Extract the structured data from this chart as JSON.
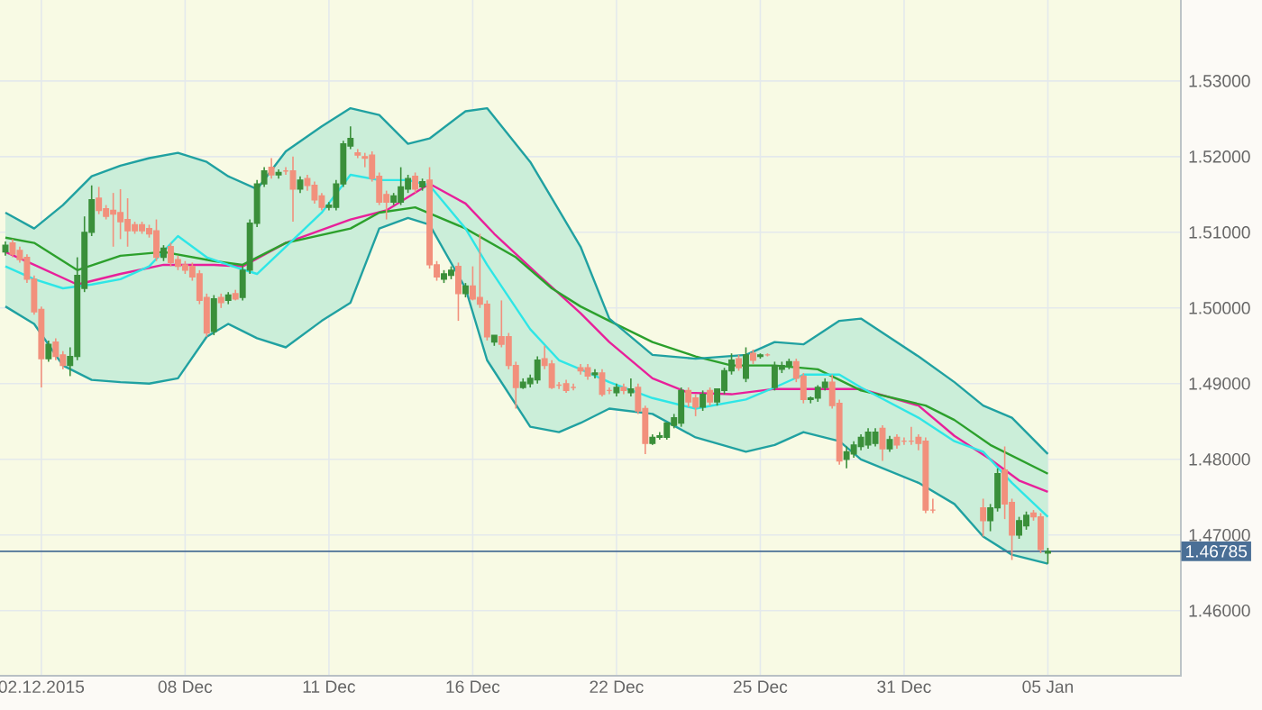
{
  "chart_data": {
    "type": "candlestick",
    "categories": [
      null,
      null,
      null,
      null,
      null,
      "02.12.2015",
      null,
      null,
      null,
      null,
      null,
      null,
      null,
      null,
      null,
      null,
      null,
      null,
      null,
      null,
      null,
      null,
      null,
      null,
      null,
      "08 Dec",
      null,
      null,
      null,
      null,
      null,
      null,
      null,
      null,
      null,
      null,
      null,
      null,
      null,
      null,
      null,
      null,
      null,
      null,
      null,
      "11 Dec",
      null,
      null,
      null,
      null,
      null,
      null,
      null,
      null,
      null,
      null,
      null,
      null,
      null,
      null,
      null,
      null,
      null,
      null,
      null,
      "16 Dec",
      null,
      null,
      null,
      null,
      null,
      null,
      null,
      null,
      null,
      null,
      null,
      null,
      null,
      null,
      null,
      null,
      null,
      null,
      null,
      "22 Dec",
      null,
      null,
      null,
      null,
      null,
      null,
      null,
      null,
      null,
      null,
      null,
      null,
      null,
      null,
      null,
      null,
      null,
      null,
      null,
      "25 Dec",
      null,
      null,
      null,
      null,
      null,
      null,
      null,
      null,
      null,
      null,
      null,
      null,
      null,
      null,
      null,
      null,
      null,
      null,
      null,
      "31 Dec",
      null,
      null,
      null,
      null,
      null,
      null,
      null,
      null,
      null,
      null,
      null,
      null,
      null,
      null,
      null,
      null,
      null,
      null,
      null,
      "05 Jan",
      null,
      null,
      null,
      null,
      null,
      null,
      null,
      null,
      null,
      null,
      null,
      null,
      null,
      null,
      null,
      null,
      null,
      null
    ],
    "ohlc": [
      [
        1.5074,
        1.5088,
        1.5069,
        1.5083
      ],
      [
        1.5086,
        1.5091,
        1.5067,
        1.5071
      ],
      [
        1.5076,
        1.5081,
        1.506,
        1.5064
      ],
      [
        1.5067,
        1.5071,
        1.5033,
        1.5038
      ],
      [
        1.5038,
        1.5043,
        1.4991,
        1.4995
      ],
      [
        1.4998,
        1.5002,
        1.4895,
        1.4933
      ],
      [
        1.4933,
        1.4957,
        1.4929,
        1.4952
      ],
      [
        1.4955,
        1.496,
        1.4931,
        1.4936
      ],
      [
        1.4938,
        1.4943,
        1.4919,
        1.4924
      ],
      [
        1.4924,
        1.4948,
        1.491,
        1.4936
      ],
      [
        1.4936,
        1.5067,
        1.4931,
        1.5043
      ],
      [
        1.5026,
        1.5121,
        1.5021,
        1.51
      ],
      [
        1.51,
        1.5162,
        1.5095,
        1.5143
      ],
      [
        1.5145,
        1.516,
        1.5124,
        1.5129
      ],
      [
        1.5131,
        1.5136,
        1.5117,
        1.5121
      ],
      [
        1.5129,
        1.5152,
        1.5081,
        1.5124
      ],
      [
        1.5126,
        1.5157,
        1.5091,
        1.5114
      ],
      [
        1.5117,
        1.5145,
        1.5081,
        1.5102
      ],
      [
        1.511,
        1.5114,
        1.5098,
        1.5102
      ],
      [
        1.511,
        1.5114,
        1.5098,
        1.5102
      ],
      [
        1.5105,
        1.511,
        1.5093,
        1.5098
      ],
      [
        1.5102,
        1.5117,
        1.5062,
        1.5067
      ],
      [
        1.5067,
        1.5083,
        1.5062,
        1.5079
      ],
      [
        1.5081,
        1.5086,
        1.5055,
        1.506
      ],
      [
        1.5064,
        1.5069,
        1.505,
        1.5055
      ],
      [
        1.5057,
        1.5062,
        1.5045,
        1.505
      ],
      [
        1.5055,
        1.506,
        1.5036,
        1.5041
      ],
      [
        1.5045,
        1.505,
        1.5005,
        1.501
      ],
      [
        1.5014,
        1.5019,
        1.4962,
        1.4967
      ],
      [
        1.4969,
        1.5017,
        1.4964,
        1.5012
      ],
      [
        1.5014,
        1.5019,
        1.5,
        1.5007
      ],
      [
        1.501,
        1.5021,
        1.5005,
        1.5017
      ],
      [
        1.5019,
        1.5024,
        1.501,
        1.5012
      ],
      [
        1.5014,
        1.5055,
        1.501,
        1.505
      ],
      [
        1.505,
        1.5117,
        1.5045,
        1.5112
      ],
      [
        1.5112,
        1.5169,
        1.5107,
        1.5164
      ],
      [
        1.5164,
        1.5186,
        1.516,
        1.5181
      ],
      [
        1.5186,
        1.5198,
        1.5171,
        1.5176
      ],
      [
        1.5176,
        1.5183,
        1.5171,
        1.5179
      ],
      [
        1.5181,
        1.5186,
        1.5176,
        1.5181
      ],
      [
        1.5181,
        1.52,
        1.5114,
        1.5157
      ],
      [
        1.5157,
        1.5174,
        1.5152,
        1.5169
      ],
      [
        1.5171,
        1.5176,
        1.5155,
        1.5162
      ],
      [
        1.5162,
        1.5167,
        1.5138,
        1.5143
      ],
      [
        1.5148,
        1.5152,
        1.5129,
        1.5133
      ],
      [
        1.5133,
        1.514,
        1.5129,
        1.5136
      ],
      [
        1.5133,
        1.5169,
        1.5129,
        1.5164
      ],
      [
        1.5164,
        1.5221,
        1.516,
        1.5217
      ],
      [
        1.5214,
        1.524,
        1.521,
        1.5224
      ],
      [
        1.5205,
        1.521,
        1.5198,
        1.5202
      ],
      [
        1.52,
        1.5205,
        1.5186,
        1.5198
      ],
      [
        1.5202,
        1.5207,
        1.5167,
        1.5171
      ],
      [
        1.5174,
        1.5179,
        1.5136,
        1.514
      ],
      [
        1.515,
        1.5155,
        1.5117,
        1.514
      ],
      [
        1.514,
        1.5152,
        1.5136,
        1.5148
      ],
      [
        1.514,
        1.5186,
        1.5136,
        1.516
      ],
      [
        1.5157,
        1.5176,
        1.5152,
        1.5171
      ],
      [
        1.5174,
        1.5179,
        1.5152,
        1.5157
      ],
      [
        1.516,
        1.5171,
        1.5155,
        1.5167
      ],
      [
        1.5169,
        1.5186,
        1.5052,
        1.5057
      ],
      [
        1.5057,
        1.5062,
        1.5036,
        1.5041
      ],
      [
        1.5038,
        1.505,
        1.5033,
        1.5045
      ],
      [
        1.5043,
        1.5055,
        1.5038,
        1.505
      ],
      [
        1.5055,
        1.506,
        1.4983,
        1.5019
      ],
      [
        1.5019,
        1.5033,
        1.5014,
        1.5029
      ],
      [
        1.5029,
        1.5055,
        1.501,
        1.5012
      ],
      [
        1.5014,
        1.5098,
        1.5,
        1.5005
      ],
      [
        1.5005,
        1.501,
        1.4957,
        1.4962
      ],
      [
        1.4955,
        1.4964,
        1.495,
        1.4964
      ],
      [
        1.4962,
        1.501,
        1.4948,
        1.4952
      ],
      [
        1.4962,
        1.4967,
        1.4919,
        1.4924
      ],
      [
        1.4924,
        1.4929,
        1.4867,
        1.4895
      ],
      [
        1.4895,
        1.4907,
        1.4893,
        1.4902
      ],
      [
        1.49,
        1.4912,
        1.4895,
        1.4907
      ],
      [
        1.4905,
        1.4936,
        1.49,
        1.4931
      ],
      [
        1.4933,
        1.495,
        1.4919,
        1.4924
      ],
      [
        1.4926,
        1.4931,
        1.4893,
        1.4895
      ],
      [
        1.4898,
        1.4902,
        1.4893,
        1.4898
      ],
      [
        1.49,
        1.4905,
        1.4888,
        1.4891
      ],
      [
        1.4895,
        1.49,
        1.4891,
        1.4895
      ],
      [
        1.4921,
        1.4926,
        1.4912,
        1.4917
      ],
      [
        1.4921,
        1.4926,
        1.4905,
        1.491
      ],
      [
        1.4912,
        1.4919,
        1.4907,
        1.4914
      ],
      [
        1.4914,
        1.4919,
        1.4883,
        1.4886
      ],
      [
        1.4891,
        1.4895,
        1.4886,
        1.4891
      ],
      [
        1.4888,
        1.49,
        1.4883,
        1.4895
      ],
      [
        1.4895,
        1.49,
        1.4886,
        1.4891
      ],
      [
        1.4888,
        1.4907,
        1.4883,
        1.4893
      ],
      [
        1.4895,
        1.49,
        1.486,
        1.4864
      ],
      [
        1.4867,
        1.4871,
        1.4807,
        1.4821
      ],
      [
        1.4821,
        1.4833,
        1.4819,
        1.4829
      ],
      [
        1.4829,
        1.4836,
        1.4826,
        1.4831
      ],
      [
        1.4829,
        1.4848,
        1.4826,
        1.4848
      ],
      [
        1.4845,
        1.486,
        1.4841,
        1.4855
      ],
      [
        1.4848,
        1.4895,
        1.4843,
        1.4891
      ],
      [
        1.4891,
        1.4895,
        1.4869,
        1.4876
      ],
      [
        1.4881,
        1.4886,
        1.4857,
        1.4869
      ],
      [
        1.4869,
        1.4891,
        1.4864,
        1.4886
      ],
      [
        1.4891,
        1.4895,
        1.4871,
        1.4876
      ],
      [
        1.4876,
        1.4893,
        1.4871,
        1.4893
      ],
      [
        1.4891,
        1.4921,
        1.4886,
        1.4917
      ],
      [
        1.4917,
        1.494,
        1.4912,
        1.4931
      ],
      [
        1.4933,
        1.4938,
        1.4917,
        1.4921
      ],
      [
        1.4907,
        1.4948,
        1.4902,
        1.4938
      ],
      [
        1.494,
        1.4945,
        1.4926,
        1.4931
      ],
      [
        1.4936,
        1.494,
        1.4933,
        1.4938
      ],
      [
        1.4938,
        1.494,
        1.4936,
        1.4938
      ],
      [
        1.4895,
        1.4929,
        1.4891,
        1.4924
      ],
      [
        1.4919,
        1.4929,
        1.4914,
        1.4924
      ],
      [
        1.4924,
        1.4933,
        1.4919,
        1.4929
      ],
      [
        1.4929,
        1.4933,
        1.4902,
        1.4907
      ],
      [
        1.491,
        1.4914,
        1.4874,
        1.4879
      ],
      [
        1.4879,
        1.4883,
        1.4874,
        1.4881
      ],
      [
        1.4881,
        1.4898,
        1.4876,
        1.4895
      ],
      [
        1.4895,
        1.4907,
        1.4891,
        1.4902
      ],
      [
        1.4902,
        1.4912,
        1.4867,
        1.4871
      ],
      [
        1.4874,
        1.4879,
        1.4793,
        1.4798
      ],
      [
        1.48,
        1.4817,
        1.4788,
        1.481
      ],
      [
        1.4807,
        1.4824,
        1.4802,
        1.4819
      ],
      [
        1.4817,
        1.4833,
        1.4812,
        1.4829
      ],
      [
        1.4819,
        1.4841,
        1.4814,
        1.4836
      ],
      [
        1.4821,
        1.4841,
        1.4817,
        1.4836
      ],
      [
        1.4841,
        1.4845,
        1.4798,
        1.4814
      ],
      [
        1.4814,
        1.4831,
        1.481,
        1.4826
      ],
      [
        1.4829,
        1.4833,
        1.4814,
        1.4819
      ],
      [
        1.4824,
        1.4829,
        1.4819,
        1.4824
      ],
      [
        1.4824,
        1.4843,
        1.4819,
        1.4824
      ],
      [
        1.4829,
        1.4833,
        1.4812,
        1.4821
      ],
      [
        1.4824,
        1.4829,
        1.4729,
        1.4733
      ],
      [
        1.4733,
        1.4748,
        1.4729,
        1.4733
      ],
      null,
      null,
      null,
      null,
      null,
      null,
      [
        1.4736,
        1.4748,
        1.4698,
        1.4719
      ],
      [
        1.4719,
        1.4741,
        1.4705,
        1.4736
      ],
      [
        1.4736,
        1.4788,
        1.4731,
        1.4781
      ],
      [
        1.4786,
        1.4817,
        1.4721,
        1.4741
      ],
      [
        1.4743,
        1.4748,
        1.4667,
        1.47
      ],
      [
        1.47,
        1.4724,
        1.4695,
        1.4719
      ],
      [
        1.4712,
        1.4731,
        1.4707,
        1.4726
      ],
      [
        1.4729,
        1.4733,
        1.4719,
        1.4724
      ],
      [
        1.4724,
        1.4729,
        1.4676,
        1.4681
      ],
      [
        1.4676,
        1.4683,
        1.4662,
        1.46785
      ],
      null,
      null,
      null,
      null,
      null,
      null,
      null,
      null,
      null,
      null,
      null,
      null,
      null,
      null,
      null,
      null,
      null,
      null
    ],
    "colors": [
      "#3a8f3a",
      "#f2907c",
      "#f2907c",
      "#f2907c",
      "#f2907c",
      "#f2907c",
      "#3a8f3a",
      "#f2907c",
      "#f2907c",
      "#3a8f3a",
      "#3a8f3a",
      "#3a8f3a",
      "#3a8f3a",
      "#f2907c",
      "#f2907c",
      "#f2907c",
      "#f2907c",
      "#f2907c",
      "#f2907c",
      "#f2907c",
      "#f2907c",
      "#f2907c",
      "#3a8f3a",
      "#f2907c",
      "#f2907c",
      "#f2907c",
      "#f2907c",
      "#f2907c",
      "#f2907c",
      "#3a8f3a",
      "#f2907c",
      "#3a8f3a",
      "#f2907c",
      "#3a8f3a",
      "#3a8f3a",
      "#3a8f3a",
      "#3a8f3a",
      "#f2907c",
      "#3a8f3a",
      "#f2907c",
      "#f2907c",
      "#3a8f3a",
      "#f2907c",
      "#f2907c",
      "#f2907c",
      "#3a8f3a",
      "#3a8f3a",
      "#3a8f3a",
      "#3a8f3a",
      "#f2907c",
      "#f2907c",
      "#f2907c",
      "#f2907c",
      "#f2907c",
      "#3a8f3a",
      "#3a8f3a",
      "#3a8f3a",
      "#f2907c",
      "#3a8f3a",
      "#f2907c",
      "#f2907c",
      "#3a8f3a",
      "#3a8f3a",
      "#f2907c",
      "#3a8f3a",
      "#f2907c",
      "#f2907c",
      "#f2907c",
      "#3a8f3a",
      "#f2907c",
      "#f2907c",
      "#f2907c",
      "#3a8f3a",
      "#3a8f3a",
      "#3a8f3a",
      "#f2907c",
      "#f2907c",
      "#f2907c",
      "#f2907c",
      "#f2907c",
      "#f2907c",
      "#f2907c",
      "#3a8f3a",
      "#f2907c",
      "#f2907c",
      "#3a8f3a",
      "#f2907c",
      "#3a8f3a",
      "#f2907c",
      "#f2907c",
      "#3a8f3a",
      "#3a8f3a",
      "#3a8f3a",
      "#3a8f3a",
      "#3a8f3a",
      "#f2907c",
      "#f2907c",
      "#3a8f3a",
      "#f2907c",
      "#3a8f3a",
      "#3a8f3a",
      "#3a8f3a",
      "#f2907c",
      "#3a8f3a",
      "#f2907c",
      "#3a8f3a",
      "#f2907c",
      "#3a8f3a",
      "#3a8f3a",
      "#3a8f3a",
      "#f2907c",
      "#f2907c",
      "#3a8f3a",
      "#3a8f3a",
      "#3a8f3a",
      "#f2907c",
      "#f2907c",
      "#3a8f3a",
      "#3a8f3a",
      "#3a8f3a",
      "#3a8f3a",
      "#3a8f3a",
      "#f2907c",
      "#3a8f3a",
      "#f2907c",
      "#f2907c",
      "#f2907c",
      "#f2907c",
      "#f2907c",
      "#f2907c",
      null,
      null,
      null,
      null,
      null,
      null,
      "#f2907c",
      "#3a8f3a",
      "#3a8f3a",
      "#f2907c",
      "#f2907c",
      "#3a8f3a",
      "#3a8f3a",
      "#f2907c",
      "#f2907c",
      "#3a8f3a",
      null,
      null,
      null,
      null,
      null,
      null,
      null,
      null,
      null,
      null,
      null,
      null,
      null,
      null,
      null,
      null,
      null,
      null
    ],
    "ylim": [
      1.4514,
      1.5407
    ],
    "yticks": [
      {
        "value": 1.46,
        "label": "1.46000"
      },
      {
        "value": 1.47,
        "label": "1.47000"
      },
      {
        "value": 1.48,
        "label": "1.48000"
      },
      {
        "value": 1.49,
        "label": "1.49000"
      },
      {
        "value": 1.5,
        "label": "1.50000"
      },
      {
        "value": 1.51,
        "label": "1.51000"
      },
      {
        "value": 1.52,
        "label": "1.52000"
      },
      {
        "value": 1.53,
        "label": "1.53000"
      }
    ],
    "grid": true,
    "series": [
      {
        "type": "line",
        "color": "#2ee6e6",
        "values": [
          1.5055,
          null,
          null,
          null,
          1.5038,
          null,
          null,
          null,
          1.5026,
          null,
          null,
          null,
          1.5031,
          null,
          null,
          null,
          1.5038,
          null,
          null,
          null,
          1.5055,
          null,
          null,
          null,
          1.5095,
          null,
          null,
          null,
          1.5067,
          null,
          null,
          1.5057,
          null,
          null,
          null,
          1.5045,
          null,
          null,
          null,
          1.5081,
          null,
          null,
          null,
          null,
          1.5126,
          null,
          null,
          null,
          1.5176,
          null,
          null,
          null,
          1.5169,
          null,
          null,
          null,
          1.5169,
          null,
          null,
          1.5162,
          null,
          null,
          null,
          null,
          1.5105,
          null,
          null,
          1.5057,
          null,
          null,
          null,
          null,
          null,
          1.4972,
          null,
          null,
          null,
          1.4931,
          null,
          null,
          1.4919,
          null,
          null,
          null,
          1.4902,
          null,
          null,
          null,
          null,
          null,
          1.4881,
          null,
          null,
          null,
          null,
          null,
          1.4867,
          null,
          null,
          null,
          null,
          null,
          null,
          1.4879,
          null,
          null,
          null,
          1.4895,
          null,
          null,
          null,
          1.4912,
          null,
          null,
          null,
          null,
          1.4912,
          null,
          null,
          1.4895,
          null,
          null,
          null,
          null,
          null,
          null,
          null,
          1.4855,
          null,
          null,
          null,
          null,
          1.4824,
          null,
          null,
          null,
          1.481,
          null,
          null,
          null,
          1.4769,
          null,
          null,
          null,
          null,
          1.4724,
          null,
          null,
          null,
          null,
          null,
          null,
          null,
          null,
          null,
          null,
          null,
          null,
          null,
          null,
          null,
          null,
          null,
          null
        ],
        "lower": [
          1.5002,
          null,
          null,
          null,
          1.4979,
          null,
          null,
          null,
          1.4924,
          null,
          null,
          null,
          1.4905,
          null,
          null,
          null,
          1.4902,
          null,
          null,
          null,
          1.49,
          null,
          null,
          null,
          1.4907,
          null,
          null,
          null,
          1.4962,
          null,
          null,
          1.4979,
          null,
          null,
          null,
          1.496,
          null,
          null,
          null,
          1.4948,
          null,
          null,
          null,
          null,
          1.4983,
          null,
          null,
          null,
          1.5007,
          null,
          null,
          null,
          1.5105,
          null,
          null,
          null,
          1.5119,
          null,
          null,
          1.511,
          null,
          null,
          null,
          null,
          1.5026,
          null,
          null,
          1.4931,
          null,
          null,
          null,
          null,
          null,
          1.4843,
          null,
          null,
          null,
          1.4836,
          null,
          null,
          1.4848,
          null,
          null,
          null,
          1.4867,
          null,
          null,
          null,
          null,
          null,
          1.486,
          null,
          null,
          null,
          null,
          null,
          1.4829,
          null,
          null,
          null,
          null,
          null,
          null,
          1.481,
          null,
          null,
          null,
          1.4819,
          null,
          null,
          null,
          1.4836,
          null,
          null,
          null,
          null,
          1.4824,
          null,
          null,
          1.48,
          null,
          null,
          null,
          null,
          null,
          null,
          null,
          1.4769,
          null,
          null,
          null,
          null,
          1.4741,
          null,
          null,
          null,
          1.4698,
          null,
          null,
          null,
          1.4674,
          null,
          null,
          null,
          null,
          1.4662,
          null,
          null,
          null,
          null,
          null,
          null,
          null,
          null,
          null,
          null,
          null,
          null,
          null,
          null,
          null,
          null,
          null,
          null
        ],
        "upper": [
          1.5126,
          null,
          null,
          null,
          1.5105,
          null,
          null,
          null,
          1.5136,
          null,
          null,
          null,
          1.5174,
          null,
          null,
          null,
          1.5188,
          null,
          null,
          null,
          1.5198,
          null,
          null,
          null,
          1.5205,
          null,
          null,
          null,
          1.5193,
          null,
          null,
          1.5174,
          null,
          null,
          null,
          1.5157,
          null,
          null,
          null,
          1.5207,
          null,
          null,
          null,
          null,
          1.524,
          null,
          null,
          null,
          1.5264,
          null,
          null,
          null,
          1.5255,
          null,
          null,
          null,
          1.5217,
          null,
          null,
          1.5224,
          null,
          null,
          null,
          null,
          1.526,
          null,
          null,
          1.5264,
          null,
          null,
          null,
          null,
          null,
          1.5193,
          null,
          null,
          null,
          1.5129,
          null,
          null,
          1.5081,
          null,
          null,
          null,
          1.4986,
          null,
          null,
          null,
          null,
          null,
          1.4938,
          null,
          null,
          null,
          null,
          null,
          1.4933,
          null,
          null,
          null,
          null,
          null,
          null,
          1.4938,
          null,
          null,
          null,
          1.4955,
          null,
          null,
          null,
          1.4952,
          null,
          null,
          null,
          null,
          1.4983,
          null,
          null,
          1.4986,
          null,
          null,
          null,
          null,
          null,
          null,
          null,
          1.4936,
          null,
          null,
          null,
          null,
          1.4902,
          null,
          null,
          null,
          1.4871,
          null,
          null,
          null,
          1.4855,
          null,
          null,
          null,
          null,
          1.4807,
          null,
          null,
          null,
          null,
          null,
          null,
          null,
          null,
          null,
          null,
          null,
          null,
          null,
          null,
          null,
          null,
          null,
          null
        ]
      },
      {
        "type": "line",
        "color": "#e8209a",
        "values": [
          1.5074,
          null,
          null,
          null,
          1.5057,
          null,
          null,
          null,
          null,
          null,
          1.5031,
          null,
          null,
          null,
          null,
          null,
          1.5045,
          null,
          null,
          null,
          null,
          null,
          1.5057,
          null,
          null,
          null,
          null,
          null,
          null,
          1.5057,
          null,
          null,
          null,
          1.5055,
          null,
          null,
          null,
          null,
          null,
          1.5086,
          null,
          null,
          null,
          null,
          null,
          null,
          null,
          null,
          1.5117,
          null,
          null,
          null,
          null,
          1.5129,
          null,
          null,
          null,
          null,
          null,
          1.5164,
          null,
          null,
          null,
          null,
          1.5138,
          null,
          null,
          null,
          1.5098,
          null,
          null,
          null,
          null,
          null,
          1.5045,
          null,
          null,
          null,
          null,
          null,
          1.4993,
          null,
          null,
          null,
          1.4955,
          null,
          null,
          null,
          null,
          null,
          1.4907,
          null,
          null,
          null,
          null,
          1.4888,
          null,
          null,
          null,
          null,
          null,
          1.4886,
          null,
          null,
          null,
          null,
          null,
          1.4893,
          null,
          null,
          null,
          null,
          null,
          1.4893,
          null,
          null,
          null,
          null,
          null,
          1.4893,
          null,
          null,
          null,
          null,
          null,
          null,
          null,
          1.4871,
          null,
          null,
          null,
          null,
          1.4831,
          null,
          null,
          null,
          null,
          1.48,
          null,
          null,
          null,
          1.4772,
          null,
          null,
          null,
          1.4757,
          null,
          null,
          null,
          null,
          null,
          null,
          null,
          null,
          null,
          null,
          null,
          null,
          null,
          null,
          null,
          null,
          null,
          null
        ]
      },
      {
        "type": "line",
        "color": "#2ca02c",
        "values": [
          1.5093,
          null,
          null,
          null,
          1.5086,
          null,
          null,
          null,
          null,
          null,
          1.505,
          null,
          null,
          null,
          null,
          null,
          1.5069,
          null,
          null,
          null,
          null,
          null,
          1.5074,
          null,
          null,
          null,
          null,
          null,
          null,
          1.5062,
          null,
          null,
          null,
          1.5057,
          null,
          null,
          null,
          null,
          null,
          1.5086,
          null,
          null,
          null,
          null,
          null,
          null,
          null,
          null,
          1.5105,
          null,
          null,
          null,
          1.5126,
          null,
          null,
          null,
          null,
          1.5133,
          null,
          null,
          null,
          null,
          null,
          null,
          1.5105,
          null,
          null,
          null,
          null,
          null,
          null,
          1.5067,
          null,
          null,
          null,
          null,
          1.5026,
          null,
          null,
          null,
          1.5002,
          null,
          null,
          null,
          1.4983,
          null,
          null,
          null,
          null,
          null,
          1.4955,
          null,
          null,
          null,
          null,
          null,
          1.4936,
          null,
          null,
          null,
          null,
          1.4924,
          null,
          null,
          null,
          null,
          null,
          1.4924,
          null,
          null,
          null,
          null,
          null,
          1.4919,
          null,
          null,
          null,
          null,
          null,
          1.4891,
          null,
          null,
          null,
          null,
          null,
          null,
          null,
          null,
          1.4871,
          null,
          null,
          null,
          1.4852,
          null,
          null,
          null,
          null,
          1.4819,
          null,
          null,
          null,
          1.48,
          null,
          null,
          null,
          1.4781,
          null,
          null,
          null,
          null,
          null,
          null,
          null,
          null,
          null,
          null,
          null,
          null,
          null,
          null,
          null,
          null,
          null,
          null
        ]
      },
      {
        "type": "line",
        "color": "#20a1a1",
        "values": [
          1.5126,
          null,
          null,
          null,
          1.5105,
          null,
          null,
          null,
          1.5136,
          null,
          null,
          null,
          1.5174,
          null,
          null,
          null,
          1.5188,
          null,
          null,
          null,
          1.5198,
          null,
          null,
          null,
          1.5205,
          null,
          null,
          null,
          1.5193,
          null,
          null,
          1.5174,
          null,
          null,
          null,
          1.5157,
          null,
          null,
          null,
          1.5207,
          null,
          null,
          null,
          null,
          1.524,
          null,
          null,
          null,
          1.5264,
          null,
          null,
          null,
          1.5255,
          null,
          null,
          null,
          1.5217,
          null,
          null,
          1.5224,
          null,
          null,
          null,
          null,
          1.526,
          null,
          null,
          1.5264,
          null,
          null,
          null,
          null,
          null,
          1.5193,
          null,
          null,
          null,
          1.5129,
          null,
          null,
          1.5081,
          null,
          null,
          null,
          1.4986,
          null,
          null,
          null,
          null,
          null,
          1.4938,
          null,
          null,
          null,
          null,
          null,
          1.4933,
          null,
          null,
          null,
          null,
          null,
          null,
          1.4938,
          null,
          null,
          null,
          1.4955,
          null,
          null,
          null,
          1.4952,
          null,
          null,
          null,
          null,
          1.4983,
          null,
          null,
          1.4986,
          null,
          null,
          null,
          null,
          null,
          null,
          null,
          1.4936,
          null,
          null,
          null,
          null,
          1.4902,
          null,
          null,
          null,
          1.4871,
          null,
          null,
          null,
          1.4855,
          null,
          null,
          null,
          null,
          1.4807,
          null,
          null,
          null,
          null,
          null,
          null,
          null,
          null,
          null,
          null,
          null,
          null,
          null,
          null,
          null,
          null,
          null,
          null
        ]
      },
      {
        "type": "line",
        "color": "#20a1a1",
        "values": [
          1.5002,
          null,
          null,
          null,
          1.4979,
          null,
          null,
          null,
          1.4924,
          null,
          null,
          null,
          1.4905,
          null,
          null,
          null,
          1.4902,
          null,
          null,
          null,
          1.49,
          null,
          null,
          null,
          1.4907,
          null,
          null,
          null,
          1.4962,
          null,
          null,
          1.4979,
          null,
          null,
          null,
          1.496,
          null,
          null,
          null,
          1.4948,
          null,
          null,
          null,
          null,
          1.4983,
          null,
          null,
          null,
          1.5007,
          null,
          null,
          null,
          1.5105,
          null,
          null,
          null,
          1.5119,
          null,
          null,
          1.511,
          null,
          null,
          null,
          null,
          1.5026,
          null,
          null,
          1.4931,
          null,
          null,
          null,
          null,
          null,
          1.4843,
          null,
          null,
          null,
          1.4836,
          null,
          null,
          1.4848,
          null,
          null,
          null,
          1.4867,
          null,
          null,
          null,
          null,
          null,
          1.486,
          null,
          null,
          null,
          null,
          null,
          1.4829,
          null,
          null,
          null,
          null,
          null,
          null,
          1.481,
          null,
          null,
          null,
          1.4819,
          null,
          null,
          null,
          1.4836,
          null,
          null,
          null,
          null,
          1.4824,
          null,
          null,
          1.48,
          null,
          null,
          null,
          null,
          null,
          null,
          null,
          1.4769,
          null,
          null,
          null,
          null,
          1.4741,
          null,
          null,
          null,
          1.4698,
          null,
          null,
          null,
          1.4674,
          null,
          null,
          null,
          null,
          1.4662,
          null,
          null,
          null,
          null,
          null,
          null,
          null,
          null,
          null,
          null,
          null,
          null,
          null,
          null,
          null,
          null,
          null,
          null
        ]
      }
    ],
    "ref_lines": [
      {
        "axis": "y",
        "value": 1.46785,
        "label": "1.46785",
        "color": "#4a6f96"
      }
    ]
  }
}
